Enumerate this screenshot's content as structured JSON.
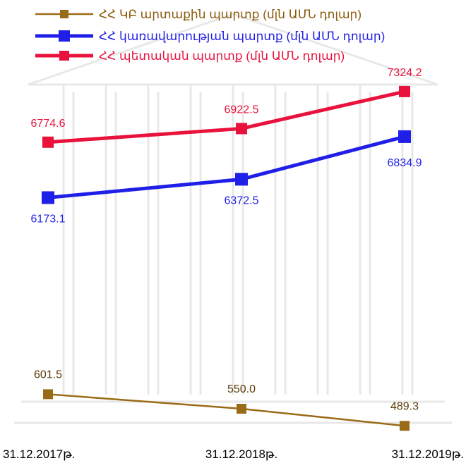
{
  "chart_data": {
    "type": "line",
    "categories": [
      "31.12.2017թ.",
      "31.12.2018թ.",
      "31.12.2019թ."
    ],
    "series": [
      {
        "name": "ՀՀ ԿԲ արտաքին պարտք (մլն ԱՄՆ դոլար)",
        "values": [
          601.5,
          550.0,
          489.3
        ],
        "labels": [
          "601.5",
          "550.0",
          "489.3"
        ],
        "color": "#9a6b16",
        "label_color": "#5a3a06"
      },
      {
        "name": "ՀՀ կառավարության պարտք (մլն ԱՄՆ դոլար)",
        "values": [
          6173.1,
          6372.5,
          6834.9
        ],
        "labels": [
          "6173.1",
          "6372.5",
          "6834.9"
        ],
        "color": "#1f1fe8",
        "label_color": "#1f1fe8"
      },
      {
        "name": "ՀՀ պետական պարտք (մլն ԱՄՆ դոլար)",
        "values": [
          6774.6,
          6922.5,
          7324.2
        ],
        "labels": [
          "6774.6",
          "6922.5",
          "7324.2"
        ],
        "color": "#e8123c",
        "label_color": "#e8123c"
      }
    ],
    "legend_position": "top",
    "grid": false,
    "axis_scale": "broken (upper series and lower series drawn on separate vertical scales)"
  }
}
